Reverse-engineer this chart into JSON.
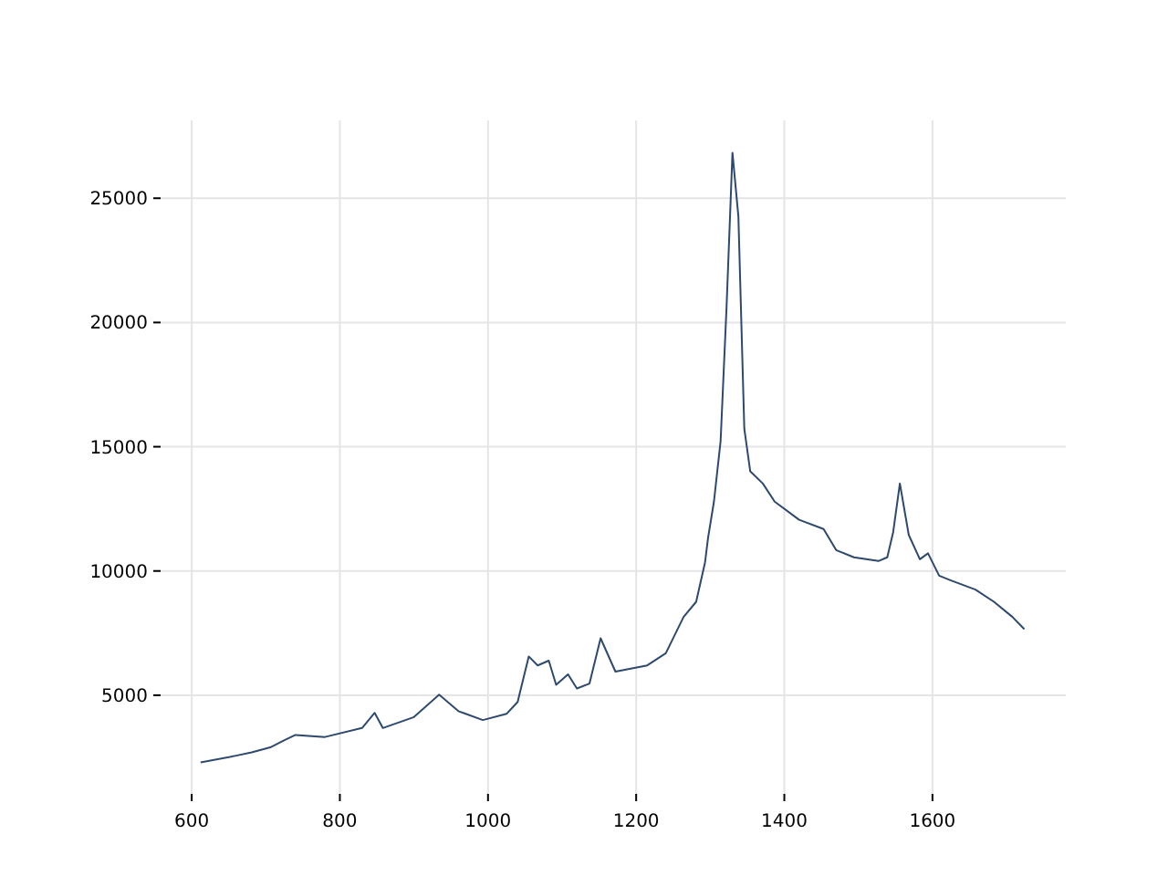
{
  "chart_data": {
    "type": "line",
    "xlim": [
      558,
      1780
    ],
    "ylim": [
      1030,
      28130
    ],
    "xticks": [
      600,
      800,
      1000,
      1200,
      1400,
      1600
    ],
    "yticks": [
      5000,
      10000,
      15000,
      20000,
      25000
    ],
    "grid": true,
    "series": [
      {
        "color": "#2d4a6e",
        "x": [
          612,
          657,
          681,
          706,
          724,
          740,
          780,
          830,
          847,
          858,
          900,
          934,
          960,
          993,
          1025,
          1040,
          1055,
          1067,
          1082,
          1092,
          1108,
          1120,
          1137,
          1152,
          1172,
          1215,
          1240,
          1264,
          1281,
          1293,
          1297,
          1305,
          1314,
          1322,
          1330,
          1338,
          1346,
          1354,
          1371,
          1387,
          1420,
          1453,
          1470,
          1494,
          1527,
          1539,
          1547,
          1556,
          1568,
          1583,
          1594,
          1609,
          1625,
          1658,
          1683,
          1708,
          1724
        ],
        "values": [
          2300,
          2550,
          2700,
          2900,
          3170,
          3400,
          3320,
          3680,
          4290,
          3680,
          4120,
          5020,
          4360,
          4000,
          4250,
          4730,
          6560,
          6200,
          6390,
          5420,
          5840,
          5270,
          5470,
          7290,
          5950,
          6200,
          6690,
          8150,
          8760,
          10350,
          11320,
          12790,
          15230,
          20600,
          26830,
          24270,
          15720,
          14010,
          13520,
          12790,
          12060,
          11690,
          10840,
          10550,
          10400,
          10550,
          11570,
          13520,
          11450,
          10470,
          10710,
          9810,
          9620,
          9250,
          8760,
          8150,
          7660
        ]
      }
    ]
  }
}
